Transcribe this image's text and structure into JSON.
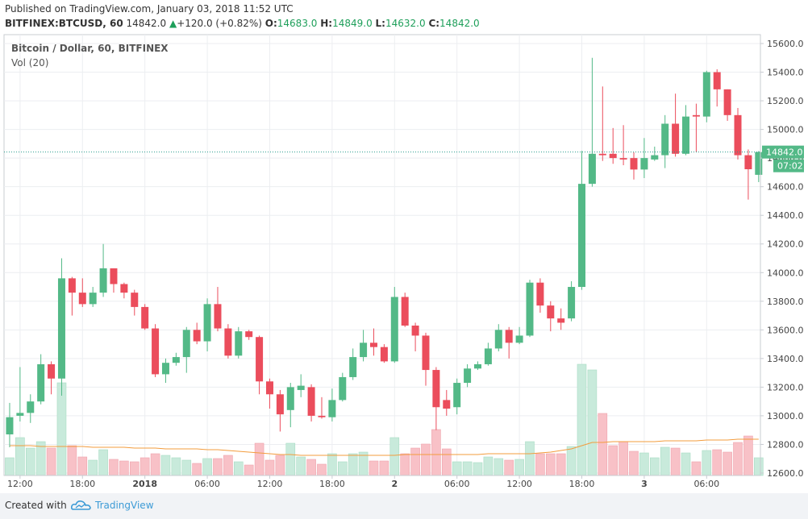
{
  "header": {
    "published": "Published on TradingView.com, January 03, 2018 11:52 UTC",
    "symbol": "BITFINEX:BTCUSD, 60",
    "price": "14842.0",
    "arrow": "▲",
    "change": "+120.0 (+0.82%)",
    "o_label": "O:",
    "o": "14683.0",
    "h_label": "H:",
    "h": "14849.0",
    "l_label": "L:",
    "l": "14632.0",
    "c_label": "C:",
    "c": "14842.0"
  },
  "chart_data": {
    "type": "candlestick",
    "legend": "Bitcoin / Dollar, 60, BITFINEX",
    "volume_label": "Vol (20)",
    "up_color": "#53b987",
    "down_color": "#eb4d5c",
    "volume_up_color": "#c8eadb",
    "volume_down_color": "#f8c1c7",
    "ma_color": "#f39c3d",
    "ohlc": [
      [
        12870,
        13090,
        12780,
        12990
      ],
      [
        13000,
        13340,
        12960,
        13020
      ],
      [
        13020,
        13150,
        12950,
        13100
      ],
      [
        13100,
        13430,
        13080,
        13360
      ],
      [
        13360,
        13380,
        13150,
        13260
      ],
      [
        13260,
        14100,
        13140,
        13960
      ],
      [
        13960,
        13970,
        13700,
        13860
      ],
      [
        13860,
        13960,
        13760,
        13780
      ],
      [
        13780,
        13900,
        13760,
        13860
      ],
      [
        13860,
        14200,
        13830,
        14030
      ],
      [
        14030,
        14030,
        13860,
        13920
      ],
      [
        13920,
        13930,
        13820,
        13860
      ],
      [
        13860,
        13880,
        13700,
        13760
      ],
      [
        13760,
        13780,
        13600,
        13610
      ],
      [
        13610,
        13640,
        13270,
        13290
      ],
      [
        13290,
        13400,
        13230,
        13370
      ],
      [
        13370,
        13440,
        13350,
        13410
      ],
      [
        13410,
        13620,
        13300,
        13600
      ],
      [
        13600,
        13650,
        13500,
        13520
      ],
      [
        13520,
        13820,
        13450,
        13780
      ],
      [
        13780,
        13900,
        13590,
        13610
      ],
      [
        13610,
        13640,
        13400,
        13420
      ],
      [
        13420,
        13620,
        13400,
        13590
      ],
      [
        13590,
        13600,
        13530,
        13550
      ],
      [
        13550,
        13560,
        13150,
        13240
      ],
      [
        13240,
        13260,
        13050,
        13150
      ],
      [
        13150,
        13180,
        12890,
        13010
      ],
      [
        13040,
        13230,
        12920,
        13200
      ],
      [
        13180,
        13290,
        13130,
        13210
      ],
      [
        13200,
        13220,
        12960,
        13000
      ],
      [
        13000,
        13130,
        12980,
        12990
      ],
      [
        12990,
        13190,
        12960,
        13110
      ],
      [
        13110,
        13300,
        13100,
        13270
      ],
      [
        13270,
        13470,
        13250,
        13410
      ],
      [
        13410,
        13600,
        13380,
        13510
      ],
      [
        13510,
        13610,
        13420,
        13480
      ],
      [
        13480,
        13500,
        13370,
        13380
      ],
      [
        13380,
        13900,
        13370,
        13830
      ],
      [
        13830,
        13860,
        13620,
        13630
      ],
      [
        13630,
        13650,
        13450,
        13560
      ],
      [
        13560,
        13580,
        13210,
        13320
      ],
      [
        13320,
        13340,
        12900,
        13060
      ],
      [
        13110,
        13180,
        13000,
        13050
      ],
      [
        13060,
        13260,
        13010,
        13230
      ],
      [
        13230,
        13360,
        13200,
        13330
      ],
      [
        13330,
        13380,
        13320,
        13360
      ],
      [
        13360,
        13510,
        13350,
        13470
      ],
      [
        13470,
        13640,
        13450,
        13600
      ],
      [
        13600,
        13620,
        13400,
        13510
      ],
      [
        13510,
        13620,
        13500,
        13560
      ],
      [
        13560,
        13950,
        13550,
        13930
      ],
      [
        13930,
        13960,
        13720,
        13770
      ],
      [
        13770,
        13800,
        13590,
        13680
      ],
      [
        13680,
        13750,
        13600,
        13650
      ],
      [
        13680,
        13940,
        13660,
        13900
      ],
      [
        13900,
        14850,
        13880,
        14620
      ],
      [
        14620,
        15500,
        14600,
        14830
      ],
      [
        14830,
        15300,
        14780,
        14820
      ],
      [
        14830,
        15010,
        14760,
        14800
      ],
      [
        14800,
        15030,
        14750,
        14790
      ],
      [
        14800,
        14840,
        14650,
        14720
      ],
      [
        14720,
        14940,
        14660,
        14800
      ],
      [
        14790,
        14880,
        14780,
        14820
      ],
      [
        14820,
        15100,
        14730,
        15040
      ],
      [
        15040,
        15250,
        14810,
        14830
      ],
      [
        14830,
        15170,
        14820,
        15090
      ],
      [
        15100,
        15180,
        14840,
        15090
      ],
      [
        15090,
        15410,
        15050,
        15400
      ],
      [
        15400,
        15420,
        15160,
        15280
      ],
      [
        15280,
        15280,
        15060,
        15100
      ],
      [
        15100,
        15150,
        14790,
        14820
      ],
      [
        14820,
        14860,
        14510,
        14722
      ],
      [
        14683,
        14849,
        14632,
        14842
      ]
    ],
    "volume": [
      22,
      47,
      34,
      42,
      34,
      115,
      37,
      23,
      19,
      32,
      20,
      18,
      17,
      22,
      27,
      25,
      22,
      19,
      15,
      21,
      21,
      25,
      17,
      13,
      40,
      19,
      25,
      40,
      23,
      20,
      14,
      27,
      17,
      27,
      29,
      18,
      18,
      47,
      27,
      34,
      39,
      57,
      33,
      17,
      17,
      16,
      23,
      21,
      19,
      20,
      42,
      27,
      27,
      27,
      36,
      138,
      131,
      77,
      37,
      42,
      30,
      28,
      22,
      35,
      34,
      28,
      17,
      31,
      32,
      29,
      41,
      49,
      22
    ],
    "volume_ma": [
      37,
      37,
      37,
      36,
      36,
      36,
      36,
      36,
      35,
      35,
      35,
      35,
      34,
      34,
      34,
      33,
      33,
      33,
      33,
      32,
      32,
      31,
      30,
      29,
      28,
      27,
      26,
      26,
      25,
      25,
      25,
      25,
      25,
      25,
      25,
      25,
      25,
      25,
      26,
      26,
      26,
      26,
      26,
      26,
      26,
      26,
      27,
      27,
      27,
      27,
      27,
      28,
      29,
      31,
      33,
      37,
      41,
      41,
      42,
      42,
      42,
      42,
      42,
      43,
      43,
      43,
      43,
      44,
      44,
      44,
      45,
      45,
      45
    ],
    "xlim": [
      -0.54,
      72.17
    ],
    "xticks": [
      {
        "value": 1,
        "label": "12:00"
      },
      {
        "value": 7,
        "label": "18:00"
      },
      {
        "value": 13,
        "label": "2018"
      },
      {
        "value": 19,
        "label": "06:00"
      },
      {
        "value": 25,
        "label": "12:00"
      },
      {
        "value": 31,
        "label": "18:00"
      },
      {
        "value": 37,
        "label": "2"
      },
      {
        "value": 43,
        "label": "06:00"
      },
      {
        "value": 49,
        "label": "12:00"
      },
      {
        "value": 55,
        "label": "18:00"
      },
      {
        "value": 61,
        "label": "3"
      },
      {
        "value": 67,
        "label": "06:00"
      }
    ],
    "ylim": [
      12583,
      15662
    ],
    "yticks": [
      {
        "value": 12600,
        "label": "12600.0"
      },
      {
        "value": 12800,
        "label": "12800.0"
      },
      {
        "value": 13000,
        "label": "13000.0"
      },
      {
        "value": 13200,
        "label": "13200.0"
      },
      {
        "value": 13400,
        "label": "13400.0"
      },
      {
        "value": 13600,
        "label": "13600.0"
      },
      {
        "value": 13800,
        "label": "13800.0"
      },
      {
        "value": 14000,
        "label": "14000.0"
      },
      {
        "value": 14200,
        "label": "14200.0"
      },
      {
        "value": 14400,
        "label": "14400.0"
      },
      {
        "value": 14600,
        "label": "14600.0"
      },
      {
        "value": 14800,
        "label": "14800.0"
      },
      {
        "value": 15000,
        "label": "15000.0"
      },
      {
        "value": 15200,
        "label": "15200.0"
      },
      {
        "value": 15400,
        "label": "15400.0"
      },
      {
        "value": 15600,
        "label": "15600.0"
      }
    ],
    "last_price": {
      "value": 14842,
      "label": "14842.0"
    },
    "countdown": "07:02",
    "grid": true
  },
  "footer": {
    "created": "Created with",
    "brand": "TradingView"
  }
}
